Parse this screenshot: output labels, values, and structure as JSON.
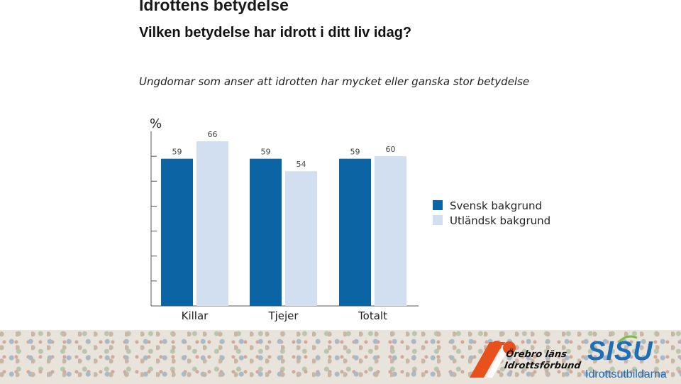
{
  "header": {
    "title": "Idrottens betydelse",
    "subtitle": "Vilken betydelse har idrott i ditt liv idag?"
  },
  "chart_data": {
    "type": "bar",
    "title": "Ungdomar som anser att idrotten har mycket eller ganska stor betydelse",
    "ylabel": "%",
    "ylim": [
      0,
      70
    ],
    "categories": [
      "Killar",
      "Tjejer",
      "Totalt"
    ],
    "series": [
      {
        "name": "Svensk bakgrund",
        "values": [
          59,
          59,
          59
        ],
        "color": "#0b64a4"
      },
      {
        "name": "Utländsk bakgrund",
        "values": [
          66,
          54,
          60
        ],
        "color": "#d2dff0"
      }
    ],
    "legend_position": "right",
    "grid": false
  },
  "footer": {
    "logo_left_text": [
      "Örebro läns",
      "Idrottsförbund"
    ],
    "logo_right_word": "SISU",
    "logo_right_sub": "Idrottsutbildarna"
  }
}
